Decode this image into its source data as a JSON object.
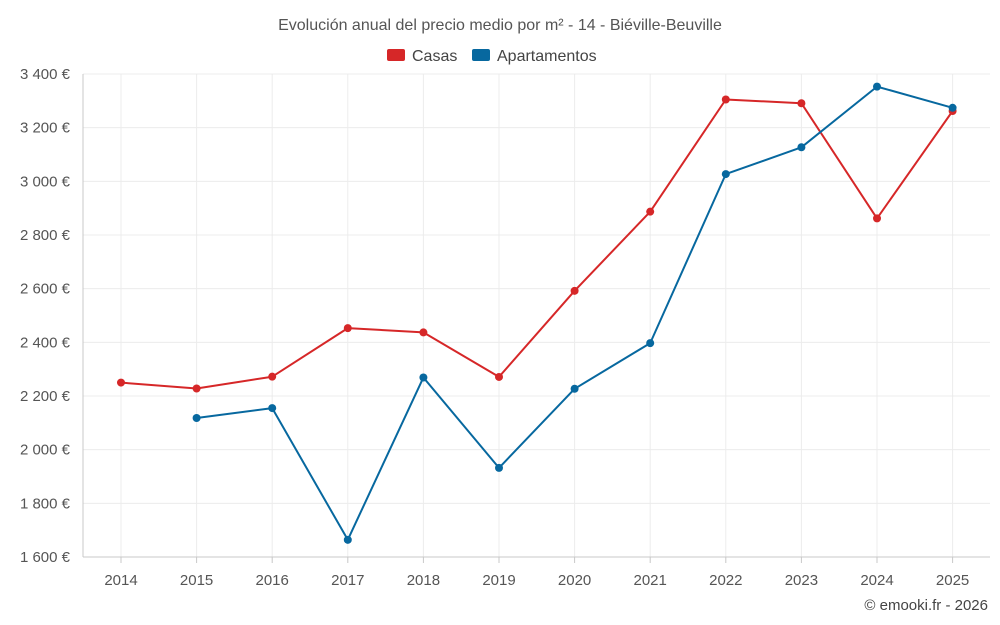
{
  "chart_data": {
    "type": "line",
    "title": "Evolución anual del precio medio por m² - 14 - Biéville-Beuville",
    "categories": [
      "2014",
      "2015",
      "2016",
      "2017",
      "2018",
      "2019",
      "2020",
      "2021",
      "2022",
      "2023",
      "2024",
      "2025"
    ],
    "series": [
      {
        "name": "Casas",
        "color": "#d62728",
        "values": [
          2250,
          2228,
          2272,
          2453,
          2437,
          2271,
          2592,
          2887,
          3305,
          3291,
          2862,
          3262
        ]
      },
      {
        "name": "Apartamentos",
        "color": "#07689f",
        "values": [
          null,
          2118,
          2155,
          1664,
          2269,
          1932,
          2227,
          2397,
          3027,
          3127,
          3353,
          3274
        ]
      }
    ],
    "ylim": [
      1600,
      3400
    ],
    "yticks": [
      1600,
      1800,
      2000,
      2200,
      2400,
      2600,
      2800,
      3000,
      3200,
      3400
    ],
    "ytick_labels": [
      "1 600 €",
      "1 800 €",
      "2 000 €",
      "2 200 €",
      "2 400 €",
      "2 600 €",
      "2 800 €",
      "3 000 €",
      "3 200 €",
      "3 400 €"
    ],
    "xlabel": "",
    "ylabel": "",
    "grid": true,
    "legend_position": "top-center"
  },
  "credit": "© emooki.fr - 2026"
}
